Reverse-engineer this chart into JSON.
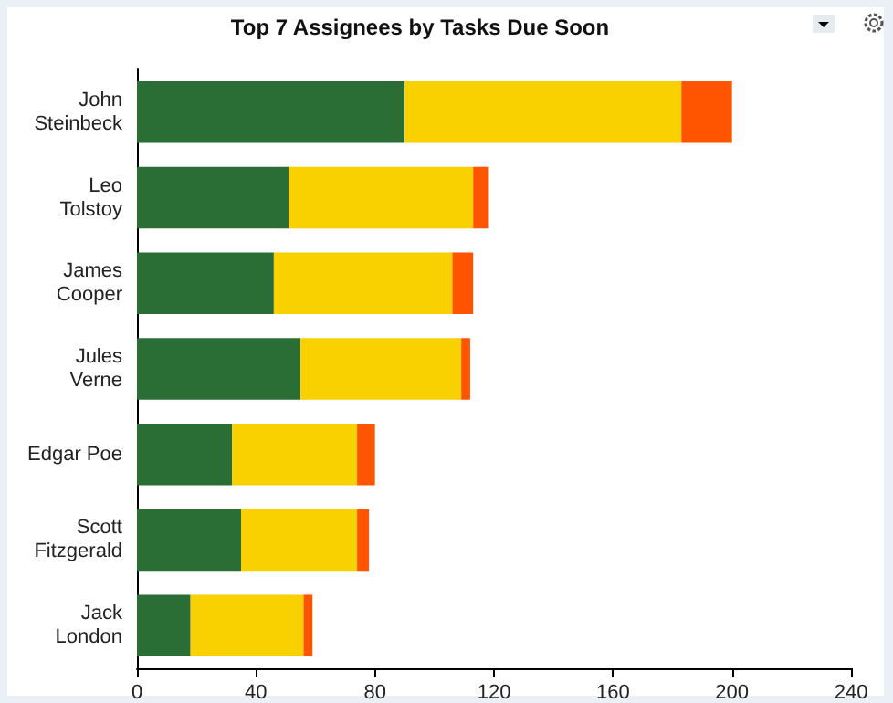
{
  "chart_data": {
    "type": "bar",
    "orientation": "horizontal",
    "stacked": true,
    "title": "Top 7 Assignees by Tasks Due Soon",
    "categories": [
      "John\nSteinbeck",
      "Leo\nTolstoy",
      "James\nCooper",
      "Jules\nVerne",
      "Edgar Poe",
      "Scott\nFitzgerald",
      "Jack\nLondon"
    ],
    "series": [
      {
        "color": "#2a6e36",
        "values": [
          90,
          51,
          46,
          55,
          32,
          35,
          18
        ]
      },
      {
        "color": "#f9d000",
        "values": [
          93,
          62,
          60,
          54,
          42,
          39,
          38
        ]
      },
      {
        "color": "#ff5500",
        "values": [
          17,
          5,
          7,
          3,
          6,
          4,
          3
        ]
      }
    ],
    "xlim": [
      0,
      240
    ],
    "xticks": [
      0,
      40,
      80,
      120,
      160,
      200,
      240
    ],
    "grid": false
  }
}
